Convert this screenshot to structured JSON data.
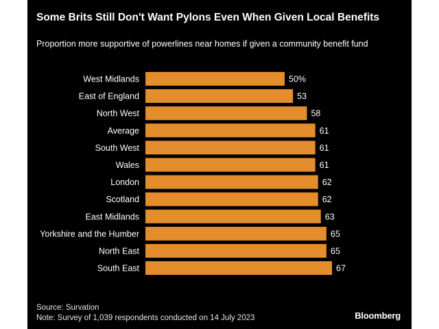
{
  "chart_data": {
    "type": "bar",
    "orientation": "horizontal",
    "title": "Some Brits Still Don't Want Pylons Even When Given Local Benefits",
    "subtitle": "Proportion more supportive of powerlines near homes if given a community benefit fund",
    "categories": [
      "West Midlands",
      "East of England",
      "North West",
      "Average",
      "South West",
      "Wales",
      "London",
      "Scotland",
      "East Midlands",
      "Yorkshire and the Humber",
      "North East",
      "South East"
    ],
    "values": [
      50,
      53,
      58,
      61,
      61,
      61,
      62,
      62,
      63,
      65,
      65,
      67
    ],
    "value_labels": [
      "50%",
      "53",
      "58",
      "61",
      "61",
      "61",
      "62",
      "62",
      "63",
      "65",
      "65",
      "67"
    ],
    "xlim": [
      0,
      67
    ],
    "grid": false,
    "legend": "none",
    "bar_color": "#e38d2c",
    "background_color": "#000000",
    "text_color": "#ffffff"
  },
  "footer": {
    "source": "Source: Survation",
    "note": "Note: Survey of 1,039 respondents conducted on 14 July 2023",
    "brand": "Bloomberg"
  }
}
